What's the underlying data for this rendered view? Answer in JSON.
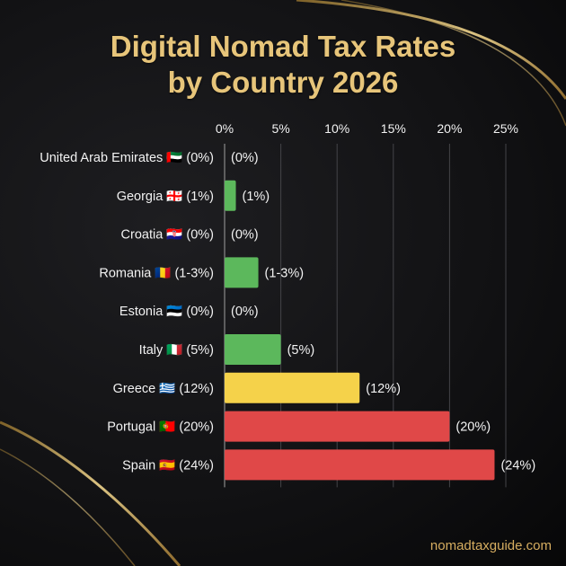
{
  "chart_data": {
    "type": "bar",
    "orientation": "horizontal",
    "title_lines": [
      "Digital Nomad Tax Rates",
      "by Country 2026"
    ],
    "categories": [
      "United Arab Emirates 🇦🇪 (0%)",
      "Georgia 🇬🇪 (1%)",
      "Croatia 🇭🇷 (0%)",
      "Romania 🇷🇴 (1-3%)",
      "Estonia 🇪🇪 (0%)",
      "Italy 🇮🇹 (5%)",
      "Greece 🇬🇷 (12%)",
      "Portugal 🇵🇹 (20%)",
      "Spain 🇪🇸 (24%)"
    ],
    "values": [
      0,
      1,
      0,
      3,
      0,
      5,
      12,
      20,
      24
    ],
    "value_labels": [
      "(0%)",
      "(1%)",
      "(0%)",
      "(1-3%)",
      "(0%)",
      "(5%)",
      "(12%)",
      "(20%)",
      "(24%)"
    ],
    "bar_colors": [
      "#5cb85c",
      "#5cb85c",
      "#5cb85c",
      "#5cb85c",
      "#5cb85c",
      "#5cb85c",
      "#f5d24a",
      "#e04848",
      "#e04848"
    ],
    "xticks": [
      0,
      5,
      10,
      15,
      20,
      25
    ],
    "xtick_labels": [
      "0%",
      "5%",
      "10%",
      "15%",
      "20%",
      "25%"
    ],
    "xlim": [
      0,
      25
    ],
    "axis_position": "top",
    "grid": true
  },
  "footer": {
    "site": "nomadtaxguide.com"
  }
}
